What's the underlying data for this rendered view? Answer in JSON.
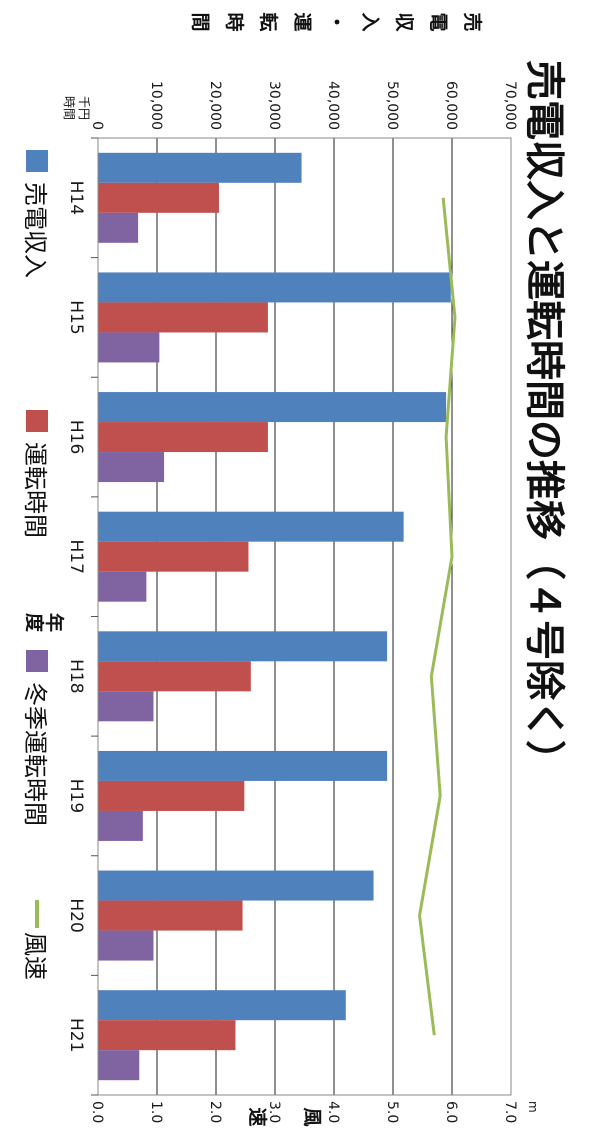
{
  "chart_data": {
    "type": "bar",
    "title": "売電収入と運転時間の推移（４号除く）",
    "xlabel": "年度",
    "ylabel": "売電収入・運転時間",
    "ylabel_right": "風速",
    "left_unit": [
      "千円",
      "時間"
    ],
    "right_unit": "m",
    "categories": [
      "H14",
      "H15",
      "H16",
      "H17",
      "H18",
      "H19",
      "H20",
      "H21"
    ],
    "series": [
      {
        "name": "売電収入",
        "type": "bar",
        "axis": "left",
        "color": "#4f81bd",
        "values": [
          34500,
          59800,
          59000,
          51800,
          49000,
          49000,
          46700,
          42000
        ]
      },
      {
        "name": "運転時間",
        "type": "bar",
        "axis": "left",
        "color": "#c0504d",
        "values": [
          20500,
          28800,
          28800,
          25500,
          25900,
          24800,
          24500,
          23300
        ]
      },
      {
        "name": "冬季運転時間",
        "type": "bar",
        "axis": "left",
        "color": "#8064a2",
        "values": [
          6800,
          10400,
          11200,
          8200,
          9400,
          7600,
          9400,
          7000
        ]
      },
      {
        "name": "風速",
        "type": "line",
        "axis": "right",
        "color": "#9bbb59",
        "values": [
          5.85,
          6.05,
          5.9,
          6.0,
          5.65,
          5.8,
          5.45,
          5.7
        ]
      }
    ],
    "ylim": [
      0,
      70000
    ],
    "yticks": [
      "0",
      "10,000",
      "20,000",
      "30,000",
      "40,000",
      "50,000",
      "60,000",
      "70,000"
    ],
    "y2lim": [
      0,
      7
    ],
    "y2ticks": [
      "0.0",
      "1.0",
      "2.0",
      "3.0",
      "4.0",
      "5.0",
      "6.0",
      "7.0"
    ],
    "grid": true,
    "legend_position": "bottom"
  }
}
